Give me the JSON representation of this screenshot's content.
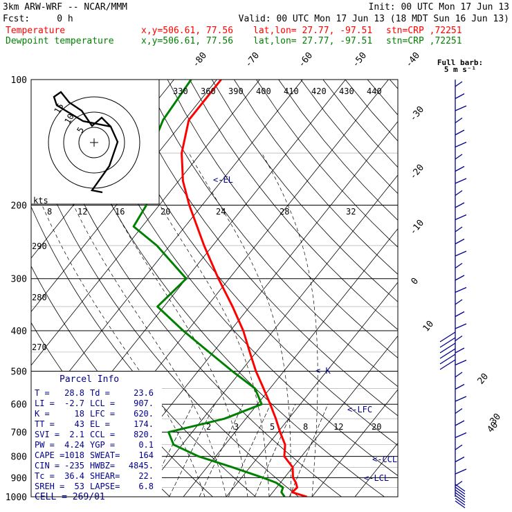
{
  "header": {
    "model": "3km ARW-WRF -- NCAR/MMM",
    "init": "Init: 00 UTC Mon 17 Jun 13",
    "fcst": "Fcst:     0 h",
    "valid": "Valid: 00 UTC Mon 17 Jun 13 (18 MDT Sun 16 Jun 13)"
  },
  "legend": [
    {
      "name": "Temperature",
      "color": "#ff0000",
      "xy": "x,y=506.61, 77.56",
      "latlon": "lat,lon= 27.77, -97.51",
      "stn": "stn=CRP ,72251"
    },
    {
      "name": "Dewpoint temperature",
      "color": "#008000",
      "xy": "x,y=506.61, 77.56",
      "latlon": "lat,lon= 27.77, -97.51",
      "stn": "stn=CRP ,72251"
    }
  ],
  "barb_legend": {
    "title": "Full barb:",
    "value": "5 m s⁻¹"
  },
  "parcel_info": {
    "title": "Parcel Info",
    "rows": [
      [
        "T  =",
        "28.8",
        "Td =",
        "23.6"
      ],
      [
        "LI =",
        "-2.7",
        "LCL =",
        "907."
      ],
      [
        "K  =",
        "18",
        "LFC =",
        "620."
      ],
      [
        "TT =",
        "43",
        "EL  =",
        "174."
      ],
      [
        "SVI =",
        "2.1",
        "CCL =",
        "820."
      ],
      [
        "PW =",
        "4.24",
        "YGP =",
        "0.1"
      ],
      [
        "CAPE =",
        "1018",
        "SWEAT=",
        "164"
      ],
      [
        "CIN =",
        "-235",
        "HWBZ=",
        "4845."
      ],
      [
        "Tc =",
        "36.4",
        "SHEAR=",
        "22."
      ],
      [
        "SREH =",
        "53",
        "LAPSE=",
        "6.8"
      ]
    ],
    "cell": "CELL = 269/01"
  },
  "level_markers": [
    "<-EL",
    "<-LFC",
    "<-CCL",
    "<-LCL",
    "<-K"
  ],
  "hodograph": {
    "unit": "kts",
    "rings": [
      "5",
      "10",
      "15"
    ]
  },
  "chart_data": {
    "type": "line",
    "title": "",
    "y_axis": {
      "label": "",
      "scale": "log-pressure",
      "ticks": [
        100,
        200,
        300,
        400,
        500,
        600,
        700,
        800,
        900,
        1000
      ],
      "range": [
        1000,
        100
      ]
    },
    "isotherm_ticks": [
      "-80",
      "-70",
      "-60",
      "-50",
      "-40",
      "-30",
      "-20",
      "-10",
      "0",
      "10",
      "20",
      "30",
      "40"
    ],
    "theta_labels": [
      "330",
      "360",
      "390",
      "400",
      "410",
      "420",
      "430",
      "440",
      "290",
      "280",
      "270"
    ],
    "mixing_ratio_labels": [
      "8",
      "12",
      "16",
      "20",
      "24",
      "28",
      "32",
      "2",
      "3",
      "5",
      "8",
      "12",
      "20"
    ],
    "series": [
      {
        "name": "Temperature",
        "color": "#ff0000",
        "points": [
          [
            1000,
            28.8
          ],
          [
            975,
            24.5
          ],
          [
            950,
            24.8
          ],
          [
            925,
            23.6
          ],
          [
            900,
            22.0
          ],
          [
            850,
            20.0
          ],
          [
            800,
            16.0
          ],
          [
            750,
            14.0
          ],
          [
            700,
            10.5
          ],
          [
            650,
            7.0
          ],
          [
            600,
            3.0
          ],
          [
            550,
            -1.5
          ],
          [
            500,
            -6.5
          ],
          [
            450,
            -11.5
          ],
          [
            400,
            -17.0
          ],
          [
            350,
            -24.0
          ],
          [
            300,
            -32.5
          ],
          [
            250,
            -42.0
          ],
          [
            200,
            -53.0
          ],
          [
            175,
            -59.0
          ],
          [
            150,
            -64.5
          ],
          [
            125,
            -69.0
          ],
          [
            100,
            -69.0
          ]
        ]
      },
      {
        "name": "Dewpoint temperature",
        "color": "#008000",
        "points": [
          [
            1000,
            23.6
          ],
          [
            975,
            22.0
          ],
          [
            950,
            21.5
          ],
          [
            925,
            19.0
          ],
          [
            900,
            15.0
          ],
          [
            850,
            6.0
          ],
          [
            800,
            -4.0
          ],
          [
            750,
            -12.0
          ],
          [
            700,
            -15.5
          ],
          [
            650,
            -5.0
          ],
          [
            600,
            1.0
          ],
          [
            550,
            -3.5
          ],
          [
            500,
            -12.0
          ],
          [
            450,
            -21.0
          ],
          [
            400,
            -31.0
          ],
          [
            350,
            -41.5
          ],
          [
            300,
            -40.0
          ],
          [
            250,
            -53.0
          ],
          [
            225,
            -62.0
          ],
          [
            200,
            -63.0
          ],
          [
            175,
            -66.0
          ],
          [
            150,
            -72.0
          ],
          [
            125,
            -75.0
          ],
          [
            100,
            -76.0
          ]
        ]
      }
    ]
  }
}
